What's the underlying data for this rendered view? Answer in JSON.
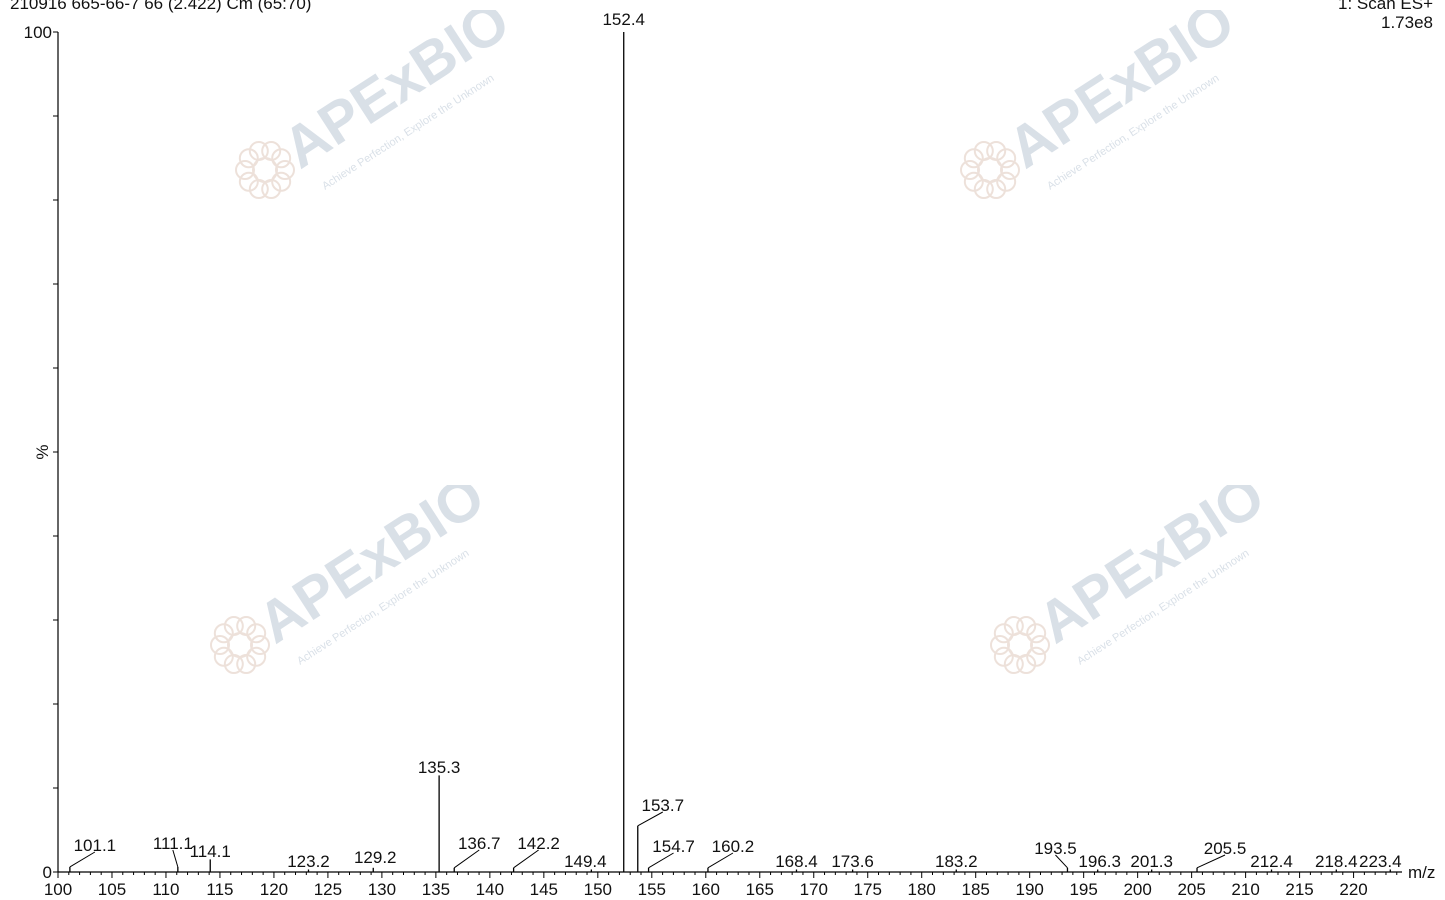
{
  "header": {
    "sample_info": "210916 665-66-7 66 (2.422) Cm (65:70)",
    "scan_mode": "1: Scan ES+",
    "intensity": "1.73e8"
  },
  "watermark": {
    "brand": "APExBIO",
    "tagline": "Achieve Perfection, Explore the Unknown",
    "color": "#c9a38f"
  },
  "chart_data": {
    "type": "bar",
    "ylabel": "%",
    "xlabel": "m/z",
    "xlim": [
      100,
      224
    ],
    "ylim": [
      0,
      100
    ],
    "y_tick_labels": [
      "0",
      "100"
    ],
    "x_ticks": [
      100,
      105,
      110,
      115,
      120,
      125,
      130,
      135,
      140,
      145,
      150,
      155,
      160,
      165,
      170,
      175,
      180,
      185,
      190,
      195,
      200,
      205,
      210,
      215,
      220
    ],
    "peaks": [
      {
        "mz": 101.1,
        "label": "101.1",
        "intensity": 0.6
      },
      {
        "mz": 111.1,
        "label": "111.1",
        "intensity": 0.6
      },
      {
        "mz": 114.1,
        "label": "114.1",
        "intensity": 1.5
      },
      {
        "mz": 123.2,
        "label": "123.2",
        "intensity": 0.3
      },
      {
        "mz": 129.2,
        "label": "129.2",
        "intensity": 0.5
      },
      {
        "mz": 135.3,
        "label": "135.3",
        "intensity": 11.5
      },
      {
        "mz": 136.7,
        "label": "136.7",
        "intensity": 0.5
      },
      {
        "mz": 142.2,
        "label": "142.2",
        "intensity": 0.5
      },
      {
        "mz": 149.4,
        "label": "149.4",
        "intensity": 0.3
      },
      {
        "mz": 152.4,
        "label": "152.4",
        "intensity": 100
      },
      {
        "mz": 153.7,
        "label": "153.7",
        "intensity": 5.5
      },
      {
        "mz": 154.7,
        "label": "154.7",
        "intensity": 0.5
      },
      {
        "mz": 160.2,
        "label": "160.2",
        "intensity": 0.5
      },
      {
        "mz": 168.4,
        "label": "168.4",
        "intensity": 0.3
      },
      {
        "mz": 173.6,
        "label": "173.6",
        "intensity": 0.3
      },
      {
        "mz": 183.2,
        "label": "183.2",
        "intensity": 0.3
      },
      {
        "mz": 193.5,
        "label": "193.5",
        "intensity": 0.5
      },
      {
        "mz": 196.3,
        "label": "196.3",
        "intensity": 0.3
      },
      {
        "mz": 201.3,
        "label": "201.3",
        "intensity": 0.3
      },
      {
        "mz": 205.5,
        "label": "205.5",
        "intensity": 0.5
      },
      {
        "mz": 212.4,
        "label": "212.4",
        "intensity": 0.3
      },
      {
        "mz": 218.4,
        "label": "218.4",
        "intensity": 0.3
      },
      {
        "mz": 223.4,
        "label": "223.4",
        "intensity": 0.3
      }
    ]
  }
}
